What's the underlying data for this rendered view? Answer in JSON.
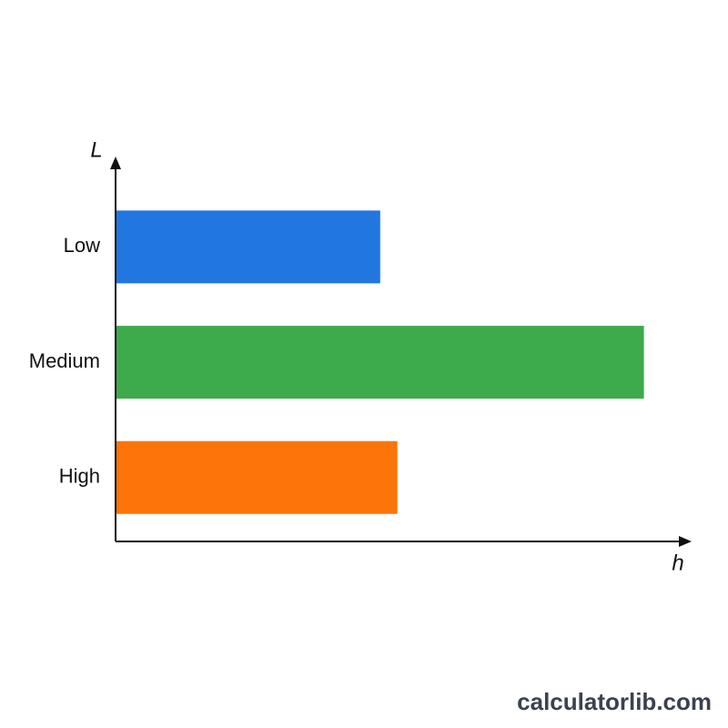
{
  "chart_data": {
    "type": "bar",
    "orientation": "horizontal",
    "y_label": "L",
    "x_label": "h",
    "categories": [
      "Low",
      "Medium",
      "High"
    ],
    "values": [
      46,
      92,
      49
    ],
    "colors": [
      "#2176e0",
      "#3daa4c",
      "#fb7508"
    ],
    "xlim": [
      0,
      100
    ]
  },
  "watermark": "calculatorlib.com"
}
